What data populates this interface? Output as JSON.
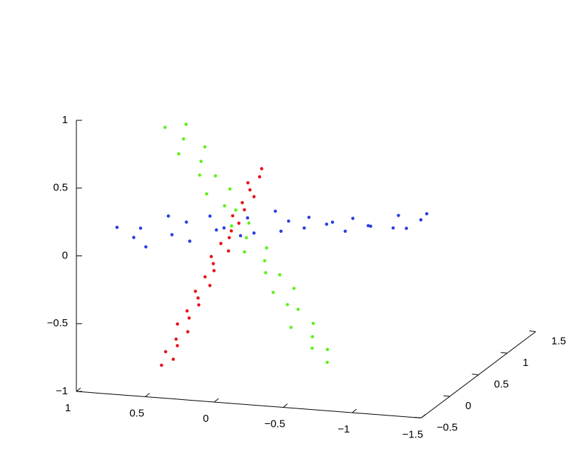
{
  "chart_data": {
    "type": "scatter3d",
    "xlim": [
      -1.5,
      1
    ],
    "ylim": [
      -0.5,
      1.5
    ],
    "zlim": [
      -1,
      1
    ],
    "xticks": [
      {
        "value": -1.5,
        "label": "−1.5"
      },
      {
        "value": -1,
        "label": "−1"
      },
      {
        "value": -0.5,
        "label": "−0.5"
      },
      0,
      0.5,
      1
    ],
    "yticks": [
      {
        "value": -0.5,
        "label": "−0.5"
      },
      0,
      0.5,
      1,
      1.5
    ],
    "zticks": [
      {
        "value": -1,
        "label": "−1"
      },
      {
        "value": -0.5,
        "label": "−0.5"
      },
      0,
      0.5,
      1
    ],
    "series": [
      {
        "color": "#2b3fe0",
        "x": [
          1.1,
          1.02,
          0.95,
          0.87,
          0.79,
          0.71,
          0.63,
          0.56,
          0.48,
          0.4,
          0.32,
          0.25,
          0.17,
          0.09,
          0.01,
          -0.06,
          -0.14,
          -0.22,
          -0.3,
          -0.37,
          -0.45,
          -0.53,
          -0.61,
          -0.68,
          -0.76,
          -0.84,
          -0.92,
          -0.99,
          -1.07,
          -1.15
        ],
        "y": [
          0.45,
          0.55,
          0.5,
          0.4,
          0.6,
          0.47,
          0.53,
          0.42,
          0.58,
          0.5,
          0.44,
          0.56,
          0.49,
          0.41,
          0.59,
          0.52,
          0.46,
          0.54,
          0.43,
          0.57,
          0.48,
          0.51,
          0.45,
          0.55,
          0.4,
          0.6,
          0.5,
          0.47,
          0.53,
          0.44
        ],
        "z": [
          -0.1,
          -0.2,
          -0.11,
          -0.21,
          -0.04,
          -0.13,
          -0.05,
          -0.15,
          -0.01,
          -0.08,
          -0.04,
          -0.13,
          0.03,
          -0.05,
          0.06,
          -0.06,
          0.04,
          -0.03,
          0.09,
          0.0,
          0.05,
          -0.02,
          0.1,
          0.02,
          0.07,
          0.0,
          0.13,
          0.05,
          0.1,
          0.18
        ]
      },
      {
        "color": "#e8131b",
        "x": [
          0.42,
          0.36,
          0.44,
          0.38,
          0.41,
          0.35,
          0.45,
          0.39,
          0.43,
          0.37,
          0.4,
          0.44,
          0.36,
          0.42,
          0.38,
          0.41,
          0.45,
          0.35,
          0.43,
          0.39,
          0.4,
          0.37,
          0.44,
          0.38,
          0.42,
          0.36,
          0.41,
          0.45,
          0.39,
          0.4
        ],
        "y": [
          -0.41,
          -0.35,
          -0.29,
          -0.23,
          -0.18,
          -0.12,
          -0.06,
          0.0,
          0.06,
          0.12,
          0.18,
          0.23,
          0.29,
          0.35,
          0.41,
          0.47,
          0.53,
          0.59,
          0.65,
          0.7,
          0.76,
          0.82,
          0.88,
          0.94,
          1.0,
          1.06,
          1.11,
          1.17,
          1.23,
          1.29
        ],
        "z": [
          -0.79,
          -0.76,
          -0.73,
          -0.7,
          -0.67,
          -0.63,
          -0.6,
          -0.57,
          -0.54,
          -0.51,
          -0.48,
          -0.45,
          -0.42,
          -0.38,
          -0.35,
          -0.32,
          -0.29,
          -0.26,
          -0.23,
          -0.2,
          -0.17,
          -0.13,
          -0.1,
          -0.07,
          -0.04,
          -0.01,
          0.02,
          0.05,
          0.08,
          0.12
        ]
      },
      {
        "color": "#5ef01a",
        "x": [
          0.71,
          0.67,
          0.63,
          0.59,
          0.55,
          0.52,
          0.48,
          0.44,
          0.4,
          0.36,
          0.32,
          0.28,
          0.24,
          0.21,
          0.17,
          0.13,
          0.09,
          0.05,
          0.01,
          -0.03,
          -0.07,
          -0.1,
          -0.14,
          -0.18,
          -0.22,
          -0.26,
          -0.3,
          -0.34,
          -0.38,
          -0.42
        ],
        "y": [
          0.35,
          0.62,
          0.48,
          0.3,
          0.66,
          0.52,
          0.4,
          0.58,
          0.33,
          0.64,
          0.45,
          0.55,
          0.38,
          0.61,
          0.47,
          0.34,
          0.63,
          0.5,
          0.42,
          0.57,
          0.36,
          0.65,
          0.44,
          0.53,
          0.31,
          0.6,
          0.49,
          0.39,
          0.56,
          0.46
        ],
        "z": [
          0.7,
          0.64,
          0.58,
          0.53,
          0.47,
          0.41,
          0.35,
          0.29,
          0.24,
          0.18,
          0.12,
          0.06,
          0.0,
          -0.05,
          -0.11,
          -0.17,
          -0.23,
          -0.28,
          -0.34,
          -0.4,
          -0.46,
          -0.52,
          -0.57,
          -0.63,
          -0.69,
          -0.75,
          -0.81,
          -0.86,
          -0.92,
          -0.98
        ]
      }
    ]
  }
}
